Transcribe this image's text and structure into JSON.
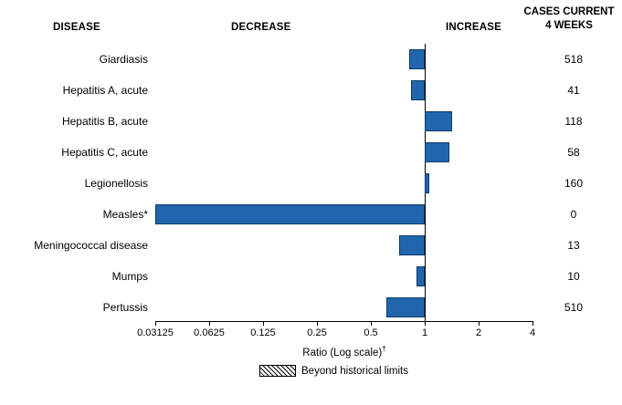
{
  "header": {
    "disease": "DISEASE",
    "decrease": "DECREASE",
    "increase": "INCREASE",
    "cases_line1": "CASES CURRENT",
    "cases_line2": "4 WEEKS"
  },
  "chart_data": {
    "type": "bar",
    "orientation": "horizontal",
    "scale": "log2",
    "baseline_ratio": 1,
    "xlim": [
      0.03125,
      4
    ],
    "x_ticks": [
      "0.03125",
      "0.0625",
      "0.125",
      "0.25",
      "0.5",
      "1",
      "2",
      "4"
    ],
    "xlabel": "Ratio (Log scale)",
    "xlabel_sup": "†",
    "bar_fill": "#2166ad",
    "bar_border": "#0d3a6b",
    "legend_label": "Beyond historical limits",
    "rows": [
      {
        "disease": "Giardiasis",
        "ratio": 0.82,
        "cases": "518"
      },
      {
        "disease": "Hepatitis A, acute",
        "ratio": 0.84,
        "cases": "41"
      },
      {
        "disease": "Hepatitis B, acute",
        "ratio": 1.42,
        "cases": "118"
      },
      {
        "disease": "Hepatitis C, acute",
        "ratio": 1.38,
        "cases": "58"
      },
      {
        "disease": "Legionellosis",
        "ratio": 1.06,
        "cases": "160"
      },
      {
        "disease": "Measles*",
        "ratio": 0.03125,
        "cases": "0"
      },
      {
        "disease": "Meningococcal disease",
        "ratio": 0.72,
        "cases": "13"
      },
      {
        "disease": "Mumps",
        "ratio": 0.9,
        "cases": "10"
      },
      {
        "disease": "Pertussis",
        "ratio": 0.61,
        "cases": "510"
      }
    ]
  }
}
